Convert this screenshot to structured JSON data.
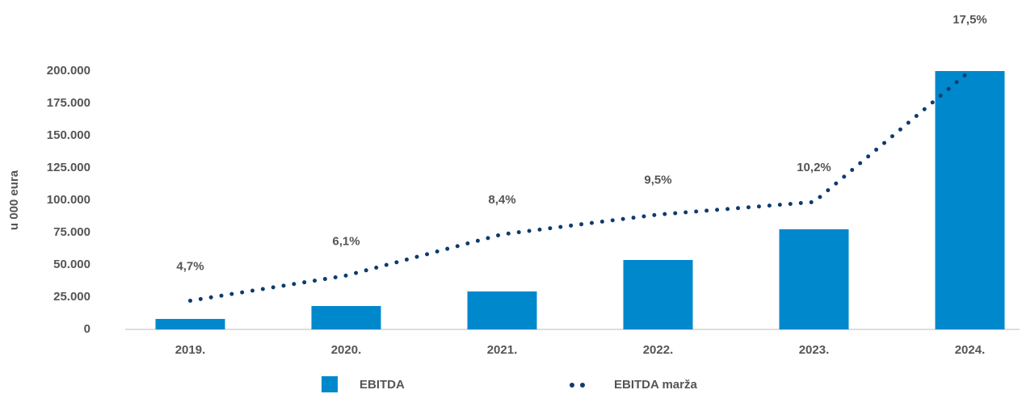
{
  "chart_data": {
    "type": "bar",
    "y_label": "u 000 eura",
    "categories": [
      "2019.",
      "2020.",
      "2021.",
      "2022.",
      "2023.",
      "2024."
    ],
    "series": [
      {
        "name": "EBITDA",
        "type": "bar",
        "color": "#0088cc",
        "values": [
          8100,
          18100,
          29400,
          53750,
          77500,
          200000
        ]
      },
      {
        "name": "EBITDA marža",
        "type": "line",
        "axis": "y2",
        "color": "#0d3b6e",
        "values": [
          4.7,
          6.1,
          8.4,
          9.5,
          10.2,
          17.5
        ],
        "value_labels": [
          "4,7%",
          "6,1%",
          "8,4%",
          "9,5%",
          "10,2%",
          "17,5%"
        ]
      }
    ],
    "ylim": [
      0,
      200000
    ],
    "yticks": [
      0,
      {
        "value": 25000,
        "label": "25.000"
      },
      {
        "value": 50000,
        "label": "50.000"
      },
      {
        "value": 75000,
        "label": "75.000"
      },
      {
        "value": 100000,
        "label": "100.000"
      },
      {
        "value": 125000,
        "label": "125.000"
      },
      {
        "value": 150000,
        "label": "150.000"
      },
      {
        "value": 175000,
        "label": "175.000"
      },
      {
        "value": 200000,
        "label": "200.000"
      }
    ],
    "y2lim": [
      3.1,
      17.5
    ]
  }
}
